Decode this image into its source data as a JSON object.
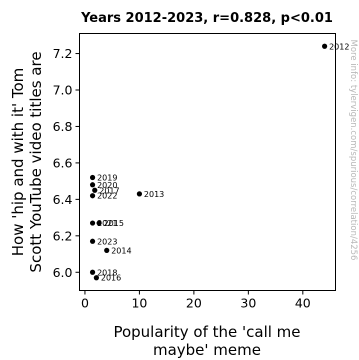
{
  "chart_data": {
    "type": "scatter",
    "title": "Years 2012-2023, r=0.828, p<0.01",
    "xlabel_lines": [
      "Popularity of the 'call me",
      "maybe' meme"
    ],
    "ylabel_lines": [
      "How 'hip and with it' Tom",
      "Scott YouTube video titles are"
    ],
    "xlim": [
      -1,
      46
    ],
    "ylim": [
      5.9,
      7.31
    ],
    "xticks": [
      0,
      10,
      20,
      30,
      40
    ],
    "yticks": [
      6.0,
      6.2,
      6.4,
      6.6,
      6.8,
      7.0,
      7.2
    ],
    "xtick_labels": [
      "0",
      "10",
      "20",
      "30",
      "40"
    ],
    "ytick_labels": [
      "6.0",
      "6.2",
      "6.4",
      "6.6",
      "6.8",
      "7.0",
      "7.2"
    ],
    "grid": false,
    "point_color": "#000000",
    "points": [
      {
        "year": "2012",
        "x": 44,
        "y": 7.24
      },
      {
        "year": "2013",
        "x": 10,
        "y": 6.43
      },
      {
        "year": "2014",
        "x": 4,
        "y": 6.12
      },
      {
        "year": "2015",
        "x": 2.6,
        "y": 6.27
      },
      {
        "year": "2016",
        "x": 2.1,
        "y": 5.97
      },
      {
        "year": "2017",
        "x": 1.8,
        "y": 6.45
      },
      {
        "year": "2018",
        "x": 1.4,
        "y": 6.0
      },
      {
        "year": "2019",
        "x": 1.4,
        "y": 6.52
      },
      {
        "year": "2020",
        "x": 1.4,
        "y": 6.48
      },
      {
        "year": "2021",
        "x": 1.4,
        "y": 6.27
      },
      {
        "year": "2022",
        "x": 1.4,
        "y": 6.42
      },
      {
        "year": "2023",
        "x": 1.4,
        "y": 6.17
      }
    ]
  },
  "watermark": "More info: tylervigen.com/spurious/correlation/4256"
}
